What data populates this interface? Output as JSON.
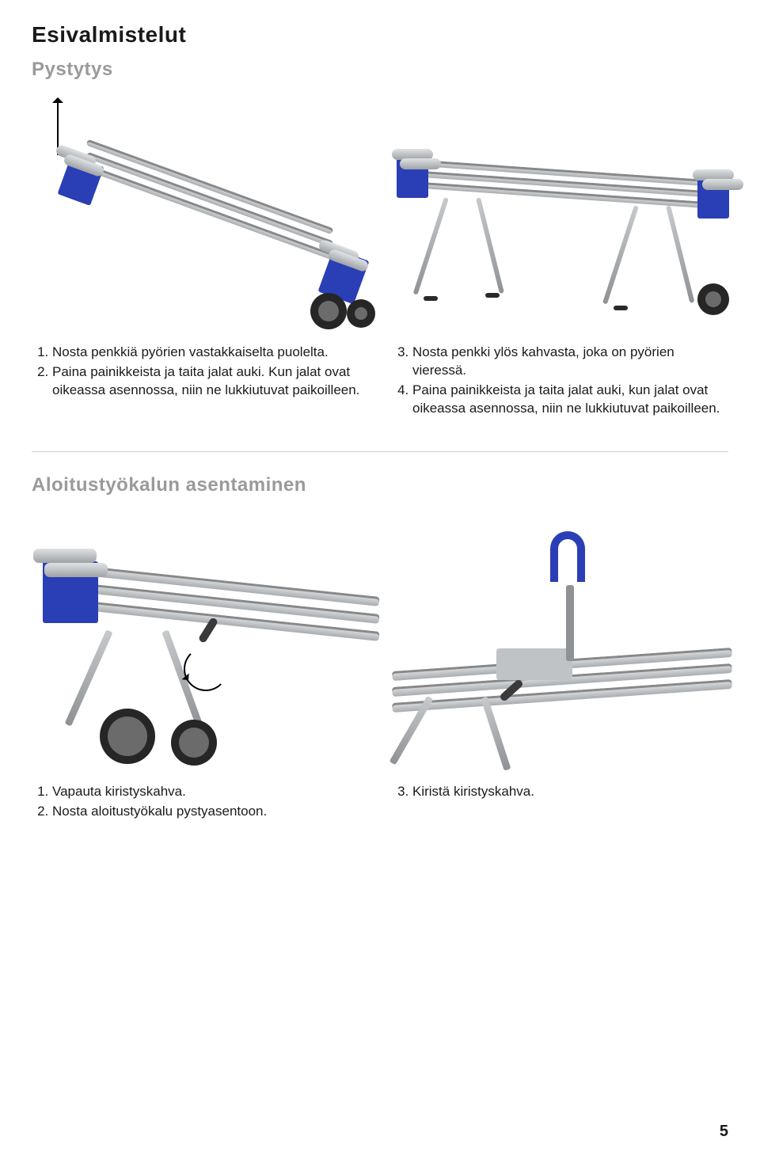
{
  "section_title": "Esivalmistelut",
  "sub_title_1": "Pystytys",
  "step_block_1": {
    "items": [
      "Nosta penkkiä pyörien vastakkaiselta puolelta.",
      "Paina painikkeista ja taita jalat auki. Kun jalat ovat oikeassa asennossa, niin ne lukkiutuvat paikoilleen."
    ],
    "start": 1
  },
  "step_block_2": {
    "items": [
      "Nosta penkki ylös kahvasta, joka on pyörien vieressä.",
      "Paina painikkeista ja taita jalat auki, kun jalat ovat oikeassa asennossa, niin ne lukkiutuvat paikoilleen."
    ],
    "start": 3
  },
  "sub_title_2": "Aloitustyökalun asentaminen",
  "step_block_3": {
    "items": [
      "Vapauta kiristyskahva.",
      "Nosta aloitustyökalu pystyasentoon."
    ],
    "start": 1
  },
  "step_block_4": {
    "items": [
      "Kiristä kiristyskahva."
    ],
    "start": 3
  },
  "page_number": "5",
  "colors": {
    "brand_blue": "#2a3fb5",
    "subtitle_grey": "#9a9a9a",
    "metal": "#b5b8bb",
    "tire": "#262626"
  }
}
